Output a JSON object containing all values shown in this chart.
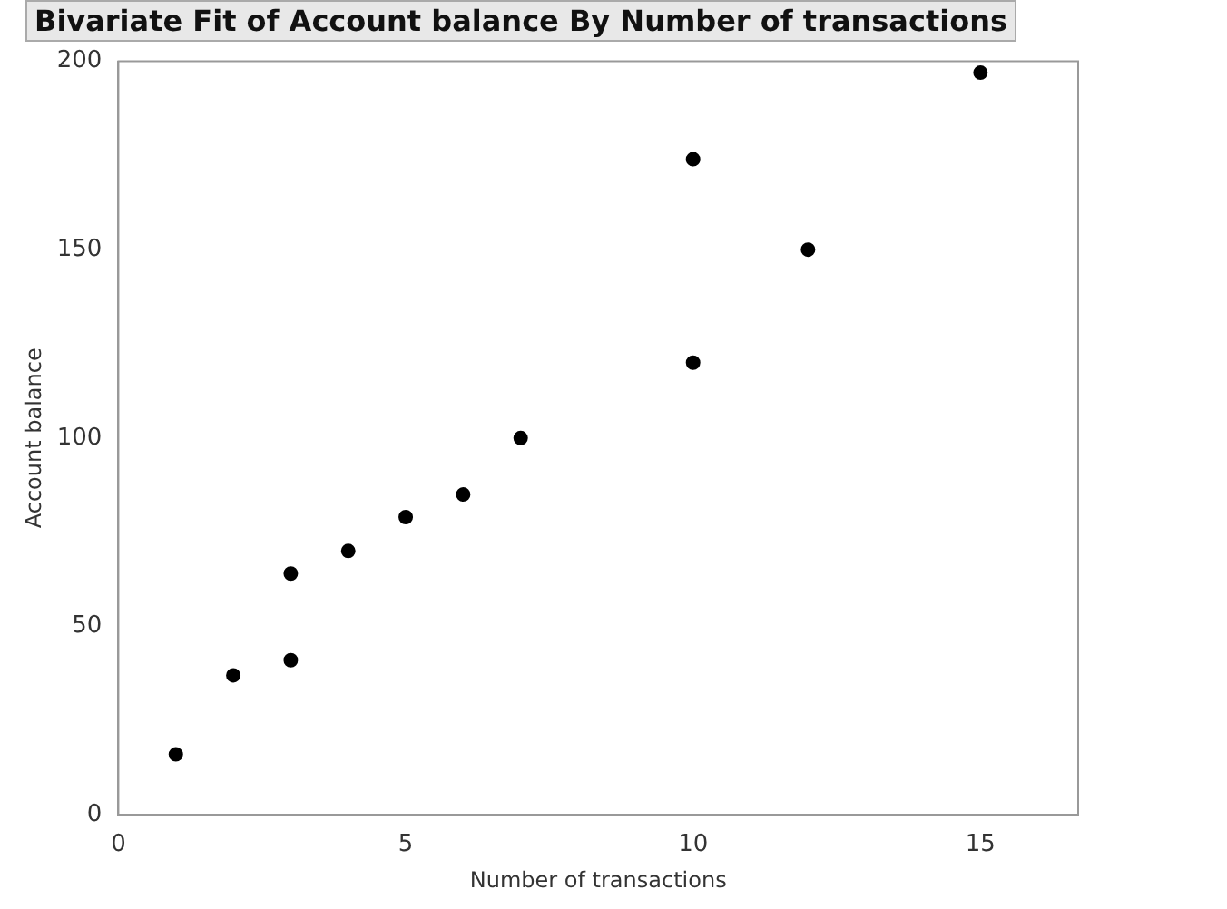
{
  "chart_data": {
    "type": "scatter",
    "title": "Bivariate Fit of Account balance By Number of transactions",
    "xlabel": "Number of transactions",
    "ylabel": "Account balance",
    "x": [
      1,
      2,
      3,
      3,
      4,
      5,
      6,
      7,
      10,
      10,
      12,
      15
    ],
    "series": [
      {
        "color": "#000000",
        "values": [
          16,
          37,
          64,
          41,
          70,
          79,
          85,
          100,
          174,
          120,
          150,
          197
        ]
      }
    ],
    "xlim": [
      0,
      16.7
    ],
    "xticks": [
      0,
      5,
      10,
      15
    ],
    "ylim": [
      0,
      200
    ],
    "yticks": [
      0,
      50,
      100,
      150,
      200
    ],
    "grid": false,
    "legend": false,
    "marker": "circle"
  }
}
